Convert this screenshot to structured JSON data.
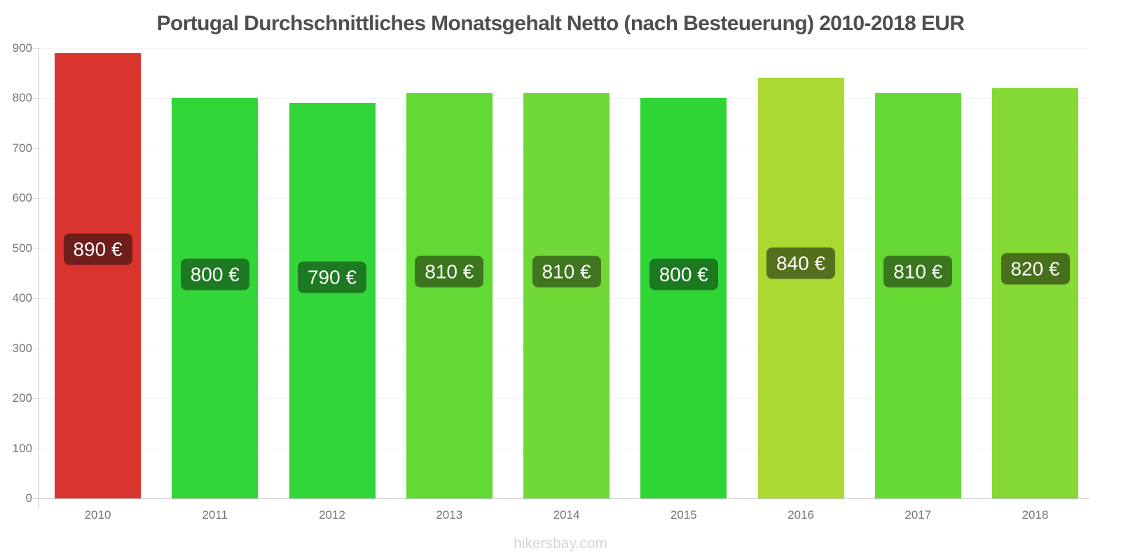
{
  "chart_data": {
    "type": "bar",
    "title": "Portugal Durchschnittliches Monatsgehalt Netto (nach Besteuerung) 2010-2018 EUR",
    "categories": [
      "2010",
      "2011",
      "2012",
      "2013",
      "2014",
      "2015",
      "2016",
      "2017",
      "2018"
    ],
    "values": [
      890,
      800,
      790,
      810,
      810,
      800,
      840,
      810,
      820
    ],
    "value_labels": [
      "890 €",
      "800 €",
      "790 €",
      "810 €",
      "810 €",
      "800 €",
      "840 €",
      "810 €",
      "820 €"
    ],
    "bar_colors": [
      "#d9342e",
      "#33d639",
      "#33d639",
      "#63d934",
      "#70d938",
      "#2fd534",
      "#aad934",
      "#66d934",
      "#84d934"
    ],
    "value_label_box_colors": [
      "#6e1f1b",
      "#1e7a22",
      "#1e7a22",
      "#3b761e",
      "#3f761f",
      "#1b7a1f",
      "#54701c",
      "#3a761e",
      "#48701c"
    ],
    "xlabel": "",
    "ylabel": "",
    "ylim": [
      0,
      900
    ],
    "yticks": [
      0,
      100,
      200,
      300,
      400,
      500,
      600,
      700,
      800,
      900
    ],
    "grid": true,
    "legend": "none",
    "currency": "EUR"
  },
  "footer": {
    "watermark": "hikersbay.com"
  },
  "colors": {
    "title_text": "#4f4f4f",
    "axis_line": "#c9c9c9",
    "grid_line": "#f3f3f3",
    "tick_label": "#757575",
    "value_label_text": "#ffffff",
    "watermark_text": "#d5d5d5"
  }
}
